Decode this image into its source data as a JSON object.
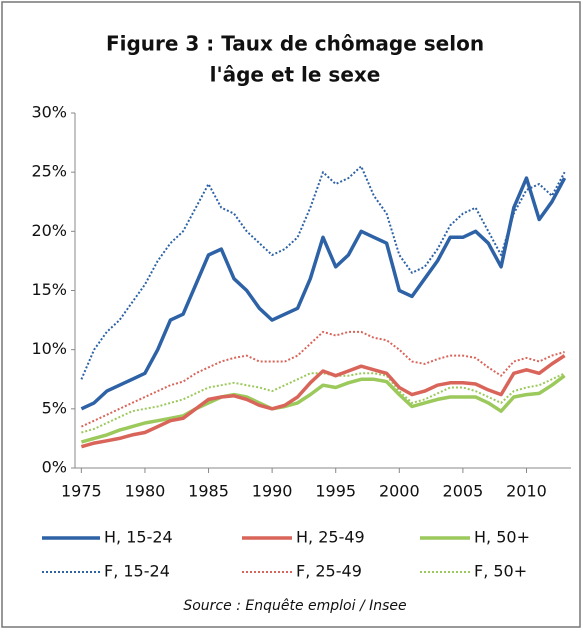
{
  "chart_data": {
    "type": "line",
    "title": [
      "Figure 3 : Taux de chômage selon",
      "l'âge et le sexe"
    ],
    "source": "Source : Enquête emploi / Insee",
    "x": [
      1975,
      1976,
      1977,
      1978,
      1979,
      1980,
      1981,
      1982,
      1983,
      1984,
      1985,
      1986,
      1987,
      1988,
      1989,
      1990,
      1991,
      1992,
      1993,
      1994,
      1995,
      1996,
      1997,
      1998,
      1999,
      2000,
      2001,
      2002,
      2003,
      2004,
      2005,
      2006,
      2007,
      2008,
      2009,
      2010,
      2011,
      2012,
      2013
    ],
    "xlim": [
      1974.5,
      2013.5
    ],
    "xticks": [
      1975,
      1980,
      1985,
      1990,
      1995,
      2000,
      2005,
      2010
    ],
    "ylim": [
      0,
      30
    ],
    "yticks": [
      {
        "value": 0,
        "label": "0%"
      },
      {
        "value": 5,
        "label": "5%"
      },
      {
        "value": 10,
        "label": "10%"
      },
      {
        "value": 15,
        "label": "15%"
      },
      {
        "value": 20,
        "label": "20%"
      },
      {
        "value": 25,
        "label": "25%"
      },
      {
        "value": 30,
        "label": "30%"
      }
    ],
    "series": [
      {
        "name": "H, 15-24",
        "color": "#2e62a6",
        "style": "solid",
        "values": [
          5,
          5.5,
          6.5,
          7,
          7.5,
          8,
          10,
          12.5,
          13,
          15.5,
          18,
          18.5,
          16,
          15,
          13.5,
          12.5,
          13,
          13.5,
          16,
          19.5,
          17,
          18,
          20,
          19.5,
          19,
          15,
          14.5,
          16,
          17.5,
          19.5,
          19.5,
          20,
          19,
          17,
          22,
          24.5,
          21,
          22.5,
          24.5
        ]
      },
      {
        "name": "H, 25-49",
        "color": "#d9655a",
        "style": "solid",
        "values": [
          1.8,
          2.1,
          2.3,
          2.5,
          2.8,
          3,
          3.5,
          4,
          4.2,
          5,
          5.8,
          6,
          6.1,
          5.8,
          5.3,
          5,
          5.3,
          6,
          7.2,
          8.2,
          7.8,
          8.2,
          8.6,
          8.3,
          8,
          6.8,
          6.2,
          6.5,
          7,
          7.2,
          7.2,
          7.1,
          6.6,
          6.2,
          8,
          8.3,
          8,
          8.8,
          9.5
        ]
      },
      {
        "name": "H, 50+",
        "color": "#9cc95b",
        "style": "solid",
        "values": [
          2.2,
          2.5,
          2.8,
          3.2,
          3.5,
          3.8,
          4,
          4.2,
          4.4,
          5,
          5.5,
          6,
          6.2,
          6,
          5.5,
          5,
          5.2,
          5.5,
          6.2,
          7,
          6.8,
          7.2,
          7.5,
          7.5,
          7.3,
          6.2,
          5.2,
          5.5,
          5.8,
          6,
          6,
          6,
          5.5,
          4.8,
          6,
          6.2,
          6.3,
          7,
          7.8
        ]
      },
      {
        "name": "F, 15-24",
        "color": "#2e62a6",
        "style": "dotted",
        "values": [
          7.5,
          10,
          11.5,
          12.5,
          14,
          15.5,
          17.5,
          19,
          20,
          22,
          24,
          22,
          21.5,
          20,
          19,
          18,
          18.5,
          19.5,
          22,
          25,
          24,
          24.5,
          25.5,
          23,
          21.5,
          18,
          16.5,
          17,
          18.5,
          20.5,
          21.5,
          22,
          20,
          18,
          21.5,
          23.5,
          24,
          23,
          25
        ]
      },
      {
        "name": "F, 25-49",
        "color": "#d9655a",
        "style": "dotted",
        "values": [
          3.5,
          4,
          4.5,
          5,
          5.5,
          6,
          6.5,
          7,
          7.3,
          8,
          8.5,
          9,
          9.3,
          9.5,
          9,
          9,
          9,
          9.5,
          10.5,
          11.5,
          11.2,
          11.5,
          11.5,
          11,
          10.8,
          10,
          9,
          8.8,
          9.2,
          9.5,
          9.5,
          9.3,
          8.5,
          7.8,
          9,
          9.3,
          9,
          9.5,
          9.8
        ]
      },
      {
        "name": "F, 50+",
        "color": "#9cc95b",
        "style": "dotted",
        "values": [
          3,
          3.3,
          3.8,
          4.3,
          4.8,
          5,
          5.2,
          5.5,
          5.8,
          6.3,
          6.8,
          7,
          7.2,
          7,
          6.8,
          6.5,
          7,
          7.5,
          8,
          8,
          7.8,
          7.8,
          8,
          8,
          7.8,
          6.5,
          5.5,
          5.8,
          6.3,
          6.8,
          6.8,
          6.5,
          6,
          5.5,
          6.5,
          6.8,
          7,
          7.5,
          8
        ]
      }
    ]
  }
}
